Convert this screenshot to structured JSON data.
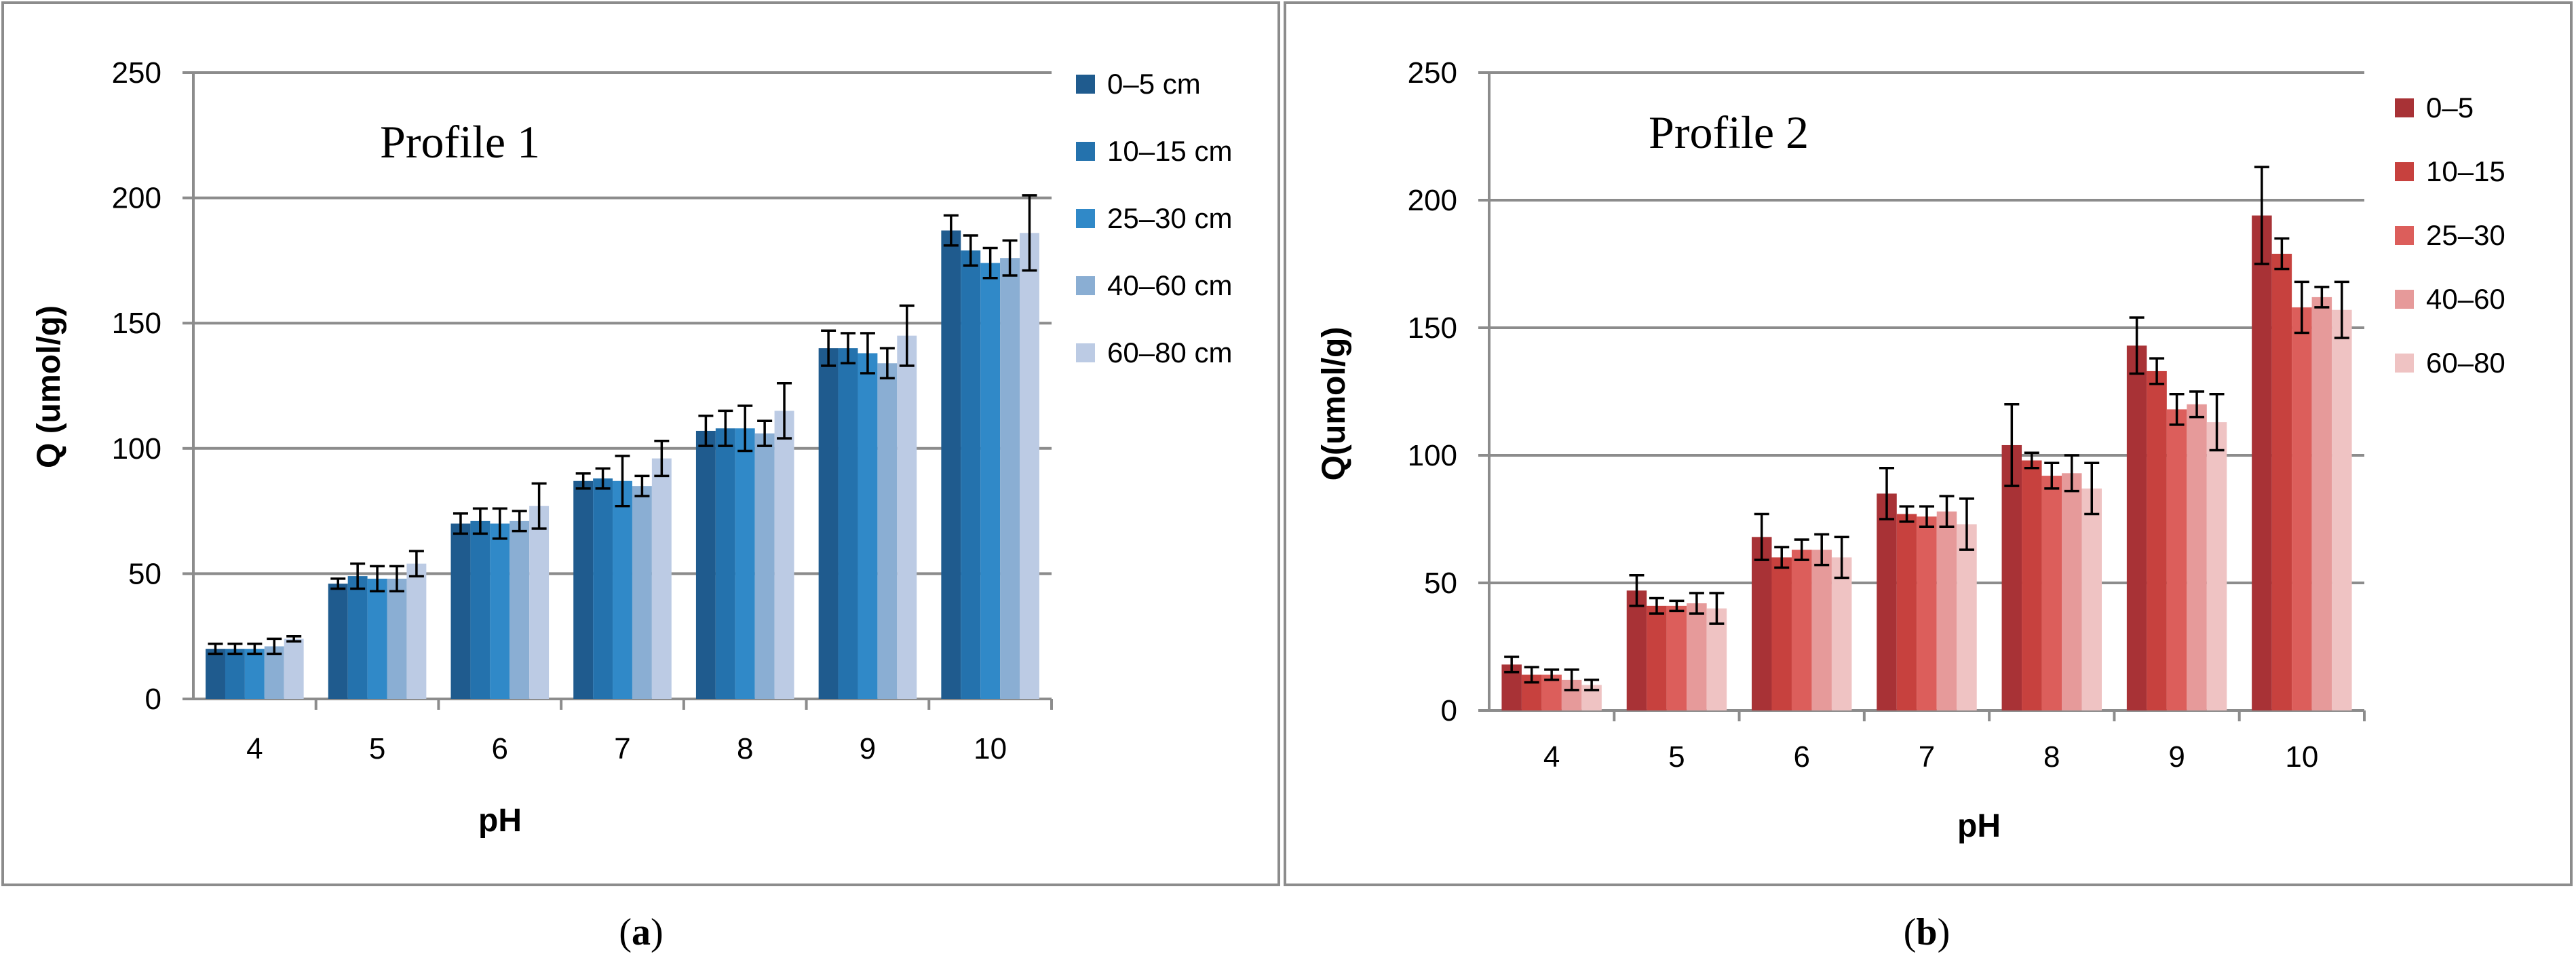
{
  "figure": {
    "panels": [
      {
        "caption_letter": "a"
      },
      {
        "caption_letter": "b"
      }
    ]
  },
  "chart_data": [
    {
      "type": "bar",
      "title": "Profile 1",
      "xlabel": "pH",
      "ylabel": "Q (umol/g)",
      "ylim": [
        0,
        250
      ],
      "yticks": [
        0,
        50,
        100,
        150,
        200,
        250
      ],
      "grid": true,
      "legend_position": "right",
      "categories": [
        "4",
        "5",
        "6",
        "7",
        "8",
        "9",
        "10"
      ],
      "series": [
        {
          "name": "0–5 cm",
          "color": "#1f5b8e",
          "values": [
            20,
            46,
            70,
            87,
            107,
            140,
            187
          ],
          "errors": [
            2,
            2,
            4,
            3,
            6,
            7,
            6
          ]
        },
        {
          "name": "10–15 cm",
          "color": "#2472ad",
          "values": [
            20,
            49,
            71,
            88,
            108,
            140,
            179
          ],
          "errors": [
            2,
            5,
            5,
            4,
            7,
            6,
            6
          ]
        },
        {
          "name": "25–30 cm",
          "color": "#3089c8",
          "values": [
            20,
            48,
            70,
            87,
            108,
            138,
            174
          ],
          "errors": [
            2,
            5,
            6,
            10,
            9,
            8,
            6
          ]
        },
        {
          "name": "40–60 cm",
          "color": "#8aaed3",
          "values": [
            21,
            48,
            71,
            85,
            106,
            134,
            176
          ],
          "errors": [
            3,
            5,
            4,
            4,
            5,
            6,
            7
          ]
        },
        {
          "name": "60–80 cm",
          "color": "#bccbe4",
          "values": [
            24,
            54,
            77,
            96,
            115,
            145,
            186
          ],
          "errors": [
            1,
            5,
            9,
            7,
            11,
            12,
            15
          ]
        }
      ]
    },
    {
      "type": "bar",
      "title": "Profile 2",
      "xlabel": "pH",
      "ylabel": "Q(umol/g)",
      "ylim": [
        0,
        250
      ],
      "yticks": [
        0,
        50,
        100,
        150,
        200,
        250
      ],
      "grid": true,
      "legend_position": "right",
      "categories": [
        "4",
        "5",
        "6",
        "7",
        "8",
        "9",
        "10"
      ],
      "series": [
        {
          "name": "0–5",
          "color": "#a83236",
          "values": [
            18,
            47,
            68,
            85,
            104,
            143,
            194
          ],
          "errors": [
            3,
            6,
            9,
            10,
            16,
            11,
            19
          ]
        },
        {
          "name": "10–15",
          "color": "#c7413e",
          "values": [
            14,
            41,
            60,
            77,
            98,
            133,
            179
          ],
          "errors": [
            3,
            3,
            4,
            3,
            3,
            5,
            6
          ]
        },
        {
          "name": "25–30",
          "color": "#dc5e5b",
          "values": [
            14,
            41,
            63,
            76,
            92,
            118,
            158
          ],
          "errors": [
            2,
            2,
            4,
            4,
            5,
            6,
            10
          ]
        },
        {
          "name": "40–60",
          "color": "#e69a9a",
          "values": [
            12,
            42,
            63,
            78,
            93,
            120,
            162
          ],
          "errors": [
            4,
            4,
            6,
            6,
            7,
            5,
            4
          ]
        },
        {
          "name": "60–80",
          "color": "#efc3c3",
          "values": [
            10,
            40,
            60,
            73,
            87,
            113,
            157
          ],
          "errors": [
            2,
            6,
            8,
            10,
            10,
            11,
            11
          ]
        }
      ]
    }
  ]
}
